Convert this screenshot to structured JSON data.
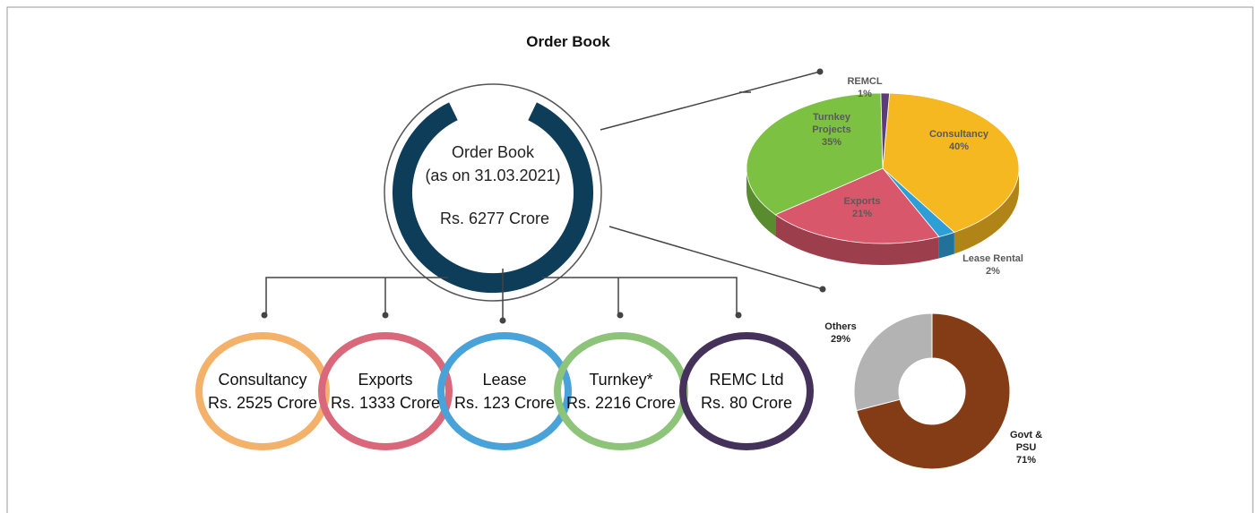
{
  "title": "Order Book",
  "order_book": {
    "label": "Order Book",
    "date": "(as on 31.03.2021)",
    "amount": "Rs. 6277 Crore"
  },
  "segments": [
    {
      "name": "Consultancy",
      "amount": "Rs. 2525 Crore",
      "color": "#f4b16a"
    },
    {
      "name": "Exports",
      "amount": "Rs. 1333 Crore",
      "color": "#d9687a"
    },
    {
      "name": "Lease",
      "amount": "Rs. 123 Crore",
      "color": "#4aa3d8"
    },
    {
      "name": "Turnkey*",
      "amount": "Rs. 2216 Crore",
      "color": "#8dc47a"
    },
    {
      "name": "REMC Ltd",
      "amount": "Rs. 80 Crore",
      "color": "#45325a"
    }
  ],
  "chart_data": [
    {
      "type": "pie",
      "categories": [
        "Consultancy",
        "Lease Rental",
        "Exports",
        "Turnkey Projects",
        "REMCL"
      ],
      "values": [
        40,
        2,
        21,
        35,
        1
      ],
      "value_labels": [
        "40%",
        "2%",
        "21%",
        "35%",
        "1%"
      ],
      "colors": [
        "#f5b820",
        "#2e9ed6",
        "#d9576a",
        "#7cc142",
        "#5b3c78"
      ]
    },
    {
      "type": "donut",
      "categories": [
        "Govt & PSU",
        "Others"
      ],
      "values": [
        71,
        29
      ],
      "value_labels": [
        "71%",
        "29%"
      ],
      "colors": [
        "#843c17",
        "#b3b3b3"
      ]
    }
  ]
}
